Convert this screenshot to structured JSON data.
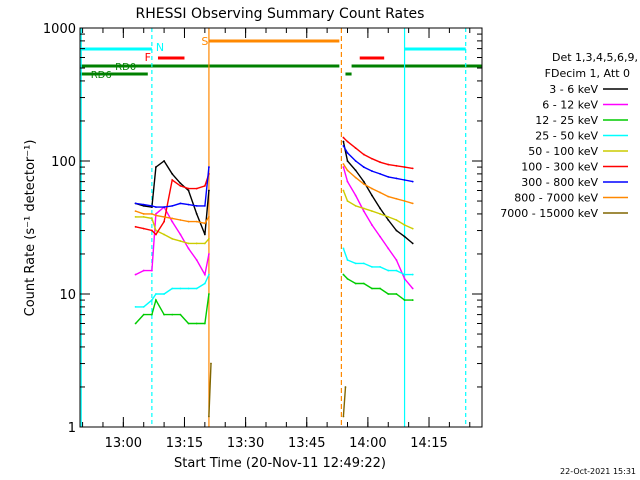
{
  "chart_data": {
    "type": "line",
    "title": "RHESSI Observing Summary Count Rates",
    "xlabel": "Start Time (20-Nov-11 12:49:22)",
    "ylabel": "Count Rate (s⁻¹ detector⁻¹)",
    "y_scale": "log",
    "ylim": [
      1,
      1000
    ],
    "xlim": [
      "12:49:22",
      "14:28:00"
    ],
    "x_ticks": [
      "13:00",
      "13:15",
      "13:30",
      "13:45",
      "14:00",
      "14:15"
    ],
    "y_ticks": [
      "1",
      "10",
      "100",
      "1000"
    ],
    "legend_header": [
      "Det 1,3,4,5,6,9,",
      "FDecim 1, Att 0"
    ],
    "legend_position": "right",
    "timestamp": "22-Oct-2021 15:31",
    "series": [
      {
        "name": "3 - 6 keV",
        "color": "#000000",
        "segments": [
          {
            "x": [
              "13:03",
              "13:05",
              "13:07",
              "13:08",
              "13:10",
              "13:12",
              "13:14",
              "13:16",
              "13:18",
              "13:20",
              "13:21"
            ],
            "y": [
              48,
              46,
              45,
              90,
              100,
              80,
              68,
              60,
              40,
              28,
              60
            ]
          },
          {
            "x": [
              "13:54",
              "13:55",
              "13:57",
              "13:59",
              "14:01",
              "14:03",
              "14:05",
              "14:07",
              "14:09",
              "14:11"
            ],
            "y": [
              140,
              100,
              85,
              70,
              55,
              44,
              36,
              30,
              27,
              24
            ]
          }
        ]
      },
      {
        "name": "6 - 12 keV",
        "color": "#ff00ff",
        "segments": [
          {
            "x": [
              "13:03",
              "13:05",
              "13:07",
              "13:08",
              "13:10",
              "13:12",
              "13:14",
              "13:16",
              "13:18",
              "13:20",
              "13:21"
            ],
            "y": [
              14,
              15,
              15,
              40,
              45,
              35,
              28,
              22,
              18,
              14,
              20
            ]
          },
          {
            "x": [
              "13:54",
              "13:55",
              "13:57",
              "13:59",
              "14:01",
              "14:03",
              "14:05",
              "14:07",
              "14:09",
              "14:11"
            ],
            "y": [
              90,
              70,
              55,
              42,
              33,
              27,
              22,
              18,
              13,
              11
            ]
          }
        ]
      },
      {
        "name": "12 - 25 keV",
        "color": "#00cc00",
        "segments": [
          {
            "x": [
              "13:03",
              "13:05",
              "13:07",
              "13:08",
              "13:10",
              "13:12",
              "13:14",
              "13:16",
              "13:18",
              "13:20",
              "13:21"
            ],
            "y": [
              6,
              7,
              7,
              9,
              7,
              7,
              7,
              6,
              6,
              6,
              10
            ]
          },
          {
            "x": [
              "13:54",
              "13:55",
              "13:57",
              "13:59",
              "14:01",
              "14:03",
              "14:05",
              "14:07",
              "14:09",
              "14:11"
            ],
            "y": [
              14,
              13,
              12,
              12,
              11,
              11,
              10,
              10,
              9,
              9
            ]
          }
        ]
      },
      {
        "name": "25 - 50 keV",
        "color": "#00ffff",
        "segments": [
          {
            "x": [
              "13:03",
              "13:05",
              "13:07",
              "13:08",
              "13:10",
              "13:12",
              "13:14",
              "13:16",
              "13:18",
              "13:20",
              "13:21"
            ],
            "y": [
              8,
              8,
              9,
              10,
              10,
              11,
              11,
              11,
              11,
              12,
              14
            ]
          },
          {
            "x": [
              "13:54",
              "13:55",
              "13:57",
              "13:59",
              "14:01",
              "14:03",
              "14:05",
              "14:07",
              "14:09",
              "14:11"
            ],
            "y": [
              22,
              18,
              17,
              17,
              16,
              16,
              15,
              15,
              14,
              14
            ]
          }
        ]
      },
      {
        "name": "50 - 100 keV",
        "color": "#cccc00",
        "segments": [
          {
            "x": [
              "13:03",
              "13:05",
              "13:07",
              "13:08",
              "13:10",
              "13:12",
              "13:14",
              "13:16",
              "13:18",
              "13:20",
              "13:21"
            ],
            "y": [
              38,
              38,
              37,
              30,
              28,
              26,
              25,
              24,
              24,
              24,
              26
            ]
          },
          {
            "x": [
              "13:54",
              "13:55",
              "13:57",
              "13:59",
              "14:01",
              "14:03",
              "14:05",
              "14:07",
              "14:09",
              "14:11"
            ],
            "y": [
              60,
              50,
              46,
              44,
              42,
              40,
              38,
              36,
              33,
              31
            ]
          }
        ]
      },
      {
        "name": "100 - 300 keV",
        "color": "#ff0000",
        "segments": [
          {
            "x": [
              "13:03",
              "13:05",
              "13:07",
              "13:08",
              "13:10",
              "13:12",
              "13:14",
              "13:16",
              "13:18",
              "13:20",
              "13:21"
            ],
            "y": [
              32,
              31,
              30,
              28,
              35,
              72,
              65,
              62,
              62,
              65,
              80
            ]
          },
          {
            "x": [
              "13:54",
              "13:55",
              "13:57",
              "13:59",
              "14:01",
              "14:03",
              "14:05",
              "14:07",
              "14:09",
              "14:11"
            ],
            "y": [
              150,
              140,
              125,
              112,
              104,
              98,
              94,
              92,
              90,
              88
            ]
          }
        ]
      },
      {
        "name": "300 - 800 keV",
        "color": "#0000ff",
        "segments": [
          {
            "x": [
              "13:03",
              "13:05",
              "13:07",
              "13:08",
              "13:10",
              "13:12",
              "13:14",
              "13:16",
              "13:18",
              "13:20",
              "13:21"
            ],
            "y": [
              48,
              47,
              46,
              45,
              45,
              46,
              48,
              47,
              46,
              46,
              90
            ]
          },
          {
            "x": [
              "13:54",
              "13:55",
              "13:57",
              "13:59",
              "14:01",
              "14:03",
              "14:05",
              "14:07",
              "14:09",
              "14:11"
            ],
            "y": [
              130,
              115,
              100,
              90,
              84,
              80,
              76,
              74,
              72,
              70
            ]
          }
        ]
      },
      {
        "name": "800 - 7000 keV",
        "color": "#ff8800",
        "segments": [
          {
            "x": [
              "13:03",
              "13:05",
              "13:07",
              "13:08",
              "13:10",
              "13:12",
              "13:14",
              "13:16",
              "13:18",
              "13:20",
              "13:21"
            ],
            "y": [
              42,
              40,
              40,
              39,
              38,
              37,
              36,
              35,
              35,
              34,
              38
            ]
          },
          {
            "x": [
              "13:54",
              "13:55",
              "13:57",
              "13:59",
              "14:01",
              "14:03",
              "14:05",
              "14:07",
              "14:09",
              "14:11"
            ],
            "y": [
              95,
              85,
              75,
              67,
              62,
              58,
              54,
              52,
              50,
              48
            ]
          }
        ]
      },
      {
        "name": "7000 - 15000 keV",
        "color": "#806600",
        "segments": [
          {
            "x": [
              "13:21",
              "13:21:30"
            ],
            "y": [
              1.2,
              3.0
            ]
          },
          {
            "x": [
              "13:54",
              "13:54:30"
            ],
            "y": [
              1.2,
              2.0
            ]
          }
        ]
      }
    ],
    "flags": {
      "top_markers": [
        {
          "label": "N",
          "color": "#00ffff"
        },
        {
          "label": "F",
          "color": "#ff0000"
        },
        {
          "label": "S",
          "color": "#ff8800"
        }
      ],
      "state_labels": [
        {
          "label": "RD0",
          "color": "#008000"
        },
        {
          "label": "RD6",
          "color": "#008000"
        }
      ]
    }
  }
}
